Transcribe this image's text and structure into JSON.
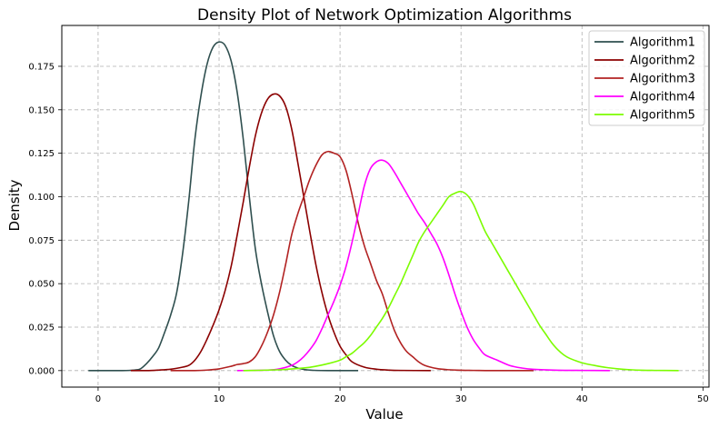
{
  "chart_data": {
    "type": "line",
    "title": "Density Plot of Network Optimization Algorithms",
    "xlabel": "Value",
    "ylabel": "Density",
    "xlim": [
      -3,
      50.5
    ],
    "ylim": [
      -0.0095,
      0.1985
    ],
    "xticks": [
      0,
      10,
      20,
      30,
      40,
      50
    ],
    "yticks": [
      0.0,
      0.025,
      0.05,
      0.075,
      0.1,
      0.125,
      0.15,
      0.175
    ],
    "ytick_labels": [
      "0.000",
      "0.025",
      "0.050",
      "0.075",
      "0.100",
      "0.125",
      "0.150",
      "0.175"
    ],
    "grid": true,
    "legend_position": "top-right",
    "series": [
      {
        "name": "Algorithm1",
        "color": "#2f4f4f",
        "x": [
          -0.8,
          1,
          2,
          3,
          3.5,
          4,
          4.5,
          5,
          5.5,
          6,
          6.5,
          7,
          7.5,
          8,
          8.5,
          9,
          9.5,
          10,
          10.5,
          11,
          11.5,
          12,
          12.5,
          13,
          13.5,
          14,
          14.5,
          15,
          15.5,
          16,
          16.5,
          17,
          17.5,
          18,
          19,
          20,
          21.5
        ],
        "y": [
          0,
          0,
          0,
          0.0003,
          0.001,
          0.004,
          0.008,
          0.013,
          0.022,
          0.032,
          0.045,
          0.068,
          0.098,
          0.133,
          0.158,
          0.176,
          0.186,
          0.189,
          0.187,
          0.178,
          0.16,
          0.133,
          0.1,
          0.07,
          0.05,
          0.034,
          0.02,
          0.011,
          0.006,
          0.003,
          0.0015,
          0.0007,
          0.0003,
          0.0001,
          0,
          0,
          0
        ]
      },
      {
        "name": "Algorithm2",
        "color": "#8b0000",
        "x": [
          2.7,
          4,
          5,
          6,
          7,
          7.5,
          8,
          8.5,
          9,
          9.5,
          10,
          10.5,
          11,
          11.5,
          12,
          12.5,
          13,
          13.5,
          14,
          14.5,
          15,
          15.5,
          16,
          16.5,
          17,
          17.5,
          18,
          18.5,
          19,
          19.5,
          20,
          20.5,
          21,
          22,
          23,
          24,
          25,
          27.5
        ],
        "y": [
          0,
          0,
          0.0003,
          0.0008,
          0.002,
          0.003,
          0.006,
          0.011,
          0.018,
          0.026,
          0.035,
          0.046,
          0.06,
          0.078,
          0.097,
          0.117,
          0.135,
          0.148,
          0.156,
          0.159,
          0.158,
          0.152,
          0.139,
          0.12,
          0.1,
          0.08,
          0.061,
          0.045,
          0.032,
          0.022,
          0.014,
          0.009,
          0.005,
          0.002,
          0.0008,
          0.0003,
          0.0001,
          0
        ]
      },
      {
        "name": "Algorithm3",
        "color": "#b22222",
        "x": [
          6,
          8,
          9,
          10,
          11,
          11.5,
          12,
          12.5,
          13,
          13.5,
          14,
          14.5,
          15,
          15.5,
          16,
          16.5,
          17,
          17.5,
          18,
          18.5,
          19,
          19.5,
          20,
          20.5,
          21,
          21.5,
          22,
          22.5,
          23,
          23.5,
          24,
          24.5,
          25,
          25.5,
          26,
          26.5,
          27,
          28,
          29,
          30,
          31,
          32,
          33,
          34,
          36
        ],
        "y": [
          0,
          0,
          0.0003,
          0.001,
          0.0025,
          0.0035,
          0.004,
          0.005,
          0.008,
          0.014,
          0.022,
          0.032,
          0.045,
          0.061,
          0.078,
          0.09,
          0.1,
          0.11,
          0.118,
          0.124,
          0.126,
          0.125,
          0.123,
          0.115,
          0.101,
          0.085,
          0.072,
          0.062,
          0.052,
          0.044,
          0.033,
          0.023,
          0.016,
          0.011,
          0.008,
          0.005,
          0.003,
          0.0012,
          0.0005,
          0.0002,
          0.0001,
          0,
          0,
          0,
          0
        ]
      },
      {
        "name": "Algorithm4",
        "color": "#ff00ff",
        "x": [
          11.5,
          14,
          15,
          16,
          16.5,
          17,
          17.5,
          18,
          18.5,
          19,
          19.5,
          20,
          20.5,
          21,
          21.5,
          22,
          22.5,
          23,
          23.5,
          24,
          24.5,
          25,
          25.5,
          26,
          26.5,
          27,
          27.5,
          28,
          28.5,
          29,
          29.5,
          30,
          30.5,
          31,
          31.5,
          32,
          33,
          34,
          35,
          36,
          38,
          40,
          42.3
        ],
        "y": [
          0,
          0.0003,
          0.001,
          0.003,
          0.005,
          0.008,
          0.012,
          0.017,
          0.024,
          0.032,
          0.04,
          0.049,
          0.06,
          0.074,
          0.09,
          0.106,
          0.116,
          0.12,
          0.121,
          0.119,
          0.114,
          0.108,
          0.102,
          0.096,
          0.09,
          0.085,
          0.079,
          0.073,
          0.065,
          0.055,
          0.044,
          0.034,
          0.025,
          0.018,
          0.013,
          0.009,
          0.006,
          0.003,
          0.0015,
          0.0007,
          0.0002,
          0.0001,
          0
        ]
      },
      {
        "name": "Algorithm5",
        "color": "#7cfc00",
        "x": [
          12,
          15,
          17,
          18,
          19,
          20,
          20.5,
          21,
          21.5,
          22,
          22.5,
          23,
          23.5,
          24,
          24.5,
          25,
          25.5,
          26,
          26.5,
          27,
          27.5,
          28,
          28.5,
          29,
          29.5,
          30,
          30.5,
          31,
          31.5,
          32,
          32.5,
          33,
          33.5,
          34,
          34.5,
          35,
          35.5,
          36,
          36.5,
          37,
          37.5,
          38,
          38.5,
          39,
          40,
          41,
          42,
          43,
          44,
          45,
          46,
          48
        ],
        "y": [
          0,
          0.0005,
          0.0015,
          0.0025,
          0.004,
          0.006,
          0.008,
          0.01,
          0.013,
          0.016,
          0.02,
          0.025,
          0.03,
          0.036,
          0.043,
          0.05,
          0.058,
          0.066,
          0.074,
          0.08,
          0.085,
          0.09,
          0.095,
          0.1,
          0.102,
          0.103,
          0.101,
          0.096,
          0.088,
          0.08,
          0.074,
          0.068,
          0.062,
          0.056,
          0.05,
          0.044,
          0.038,
          0.032,
          0.026,
          0.021,
          0.016,
          0.012,
          0.009,
          0.007,
          0.0045,
          0.003,
          0.0018,
          0.001,
          0.0005,
          0.0002,
          0.0001,
          0
        ]
      }
    ]
  }
}
